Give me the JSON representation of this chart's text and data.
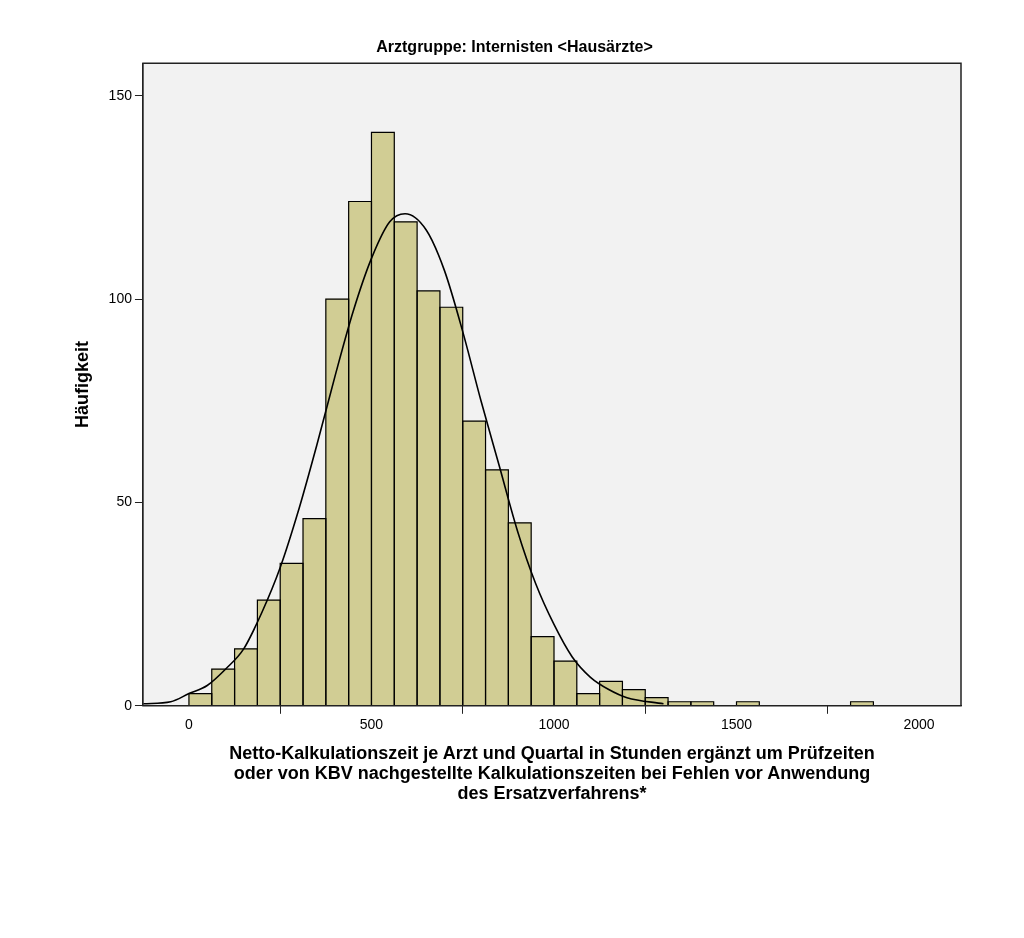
{
  "chart_data": {
    "type": "histogram",
    "title": "Arztgruppe: Internisten <Hausärzte>",
    "xlabel": "Netto-Kalkulationszeit je Arzt und Quartal in Stunden ergänzt um Prüfzeiten\noder von KBV nachgestellte Kalkulationszeiten bei Fehlen vor Anwendung\ndes Ersatzverfahrens*",
    "ylabel": "Häufigkeit",
    "bins": [
      0,
      62.5,
      125,
      187.5,
      250,
      312.5,
      375,
      437.5,
      500,
      562.5,
      625,
      687.5,
      750,
      812.5,
      875,
      937.5,
      1000,
      1062.5,
      1125,
      1187.5,
      1250,
      1312.5,
      1375,
      1437.5,
      1500,
      1562.5,
      1625,
      1687.5,
      1750,
      1812.5,
      1875
    ],
    "values": [
      3,
      9,
      14,
      26,
      35,
      46,
      100,
      124,
      141,
      119,
      102,
      98,
      70,
      58,
      45,
      17,
      11,
      3,
      6,
      4,
      2,
      1,
      1,
      0,
      1,
      0,
      0,
      0,
      0,
      1
    ],
    "color": "#d1cd94",
    "series": [
      {
        "type": "line",
        "color": "#000000",
        "x": [
          -125,
          -50,
          0,
          50,
          100,
          150,
          200,
          250,
          300,
          350,
          400,
          450,
          500,
          550,
          592,
          650,
          700,
          750,
          800,
          850,
          900,
          950,
          1000,
          1050,
          1100,
          1150,
          1200,
          1300
        ],
        "values": [
          0.5,
          1,
          3,
          5,
          9,
          14,
          23,
          34,
          48,
          64,
          81,
          97,
          110,
          119,
          121,
          117,
          107,
          92,
          75,
          59,
          43,
          30,
          20,
          12,
          7,
          4,
          2,
          0.5
        ]
      }
    ],
    "xlim": [
      -126,
      2115
    ],
    "ylim": [
      0,
      158
    ],
    "xticks": [
      0,
      500,
      1000,
      1500,
      2000
    ],
    "yticks": [
      0,
      50,
      100,
      150
    ],
    "grid": false,
    "legend": false,
    "marker": "none",
    "line_style": "solid"
  }
}
